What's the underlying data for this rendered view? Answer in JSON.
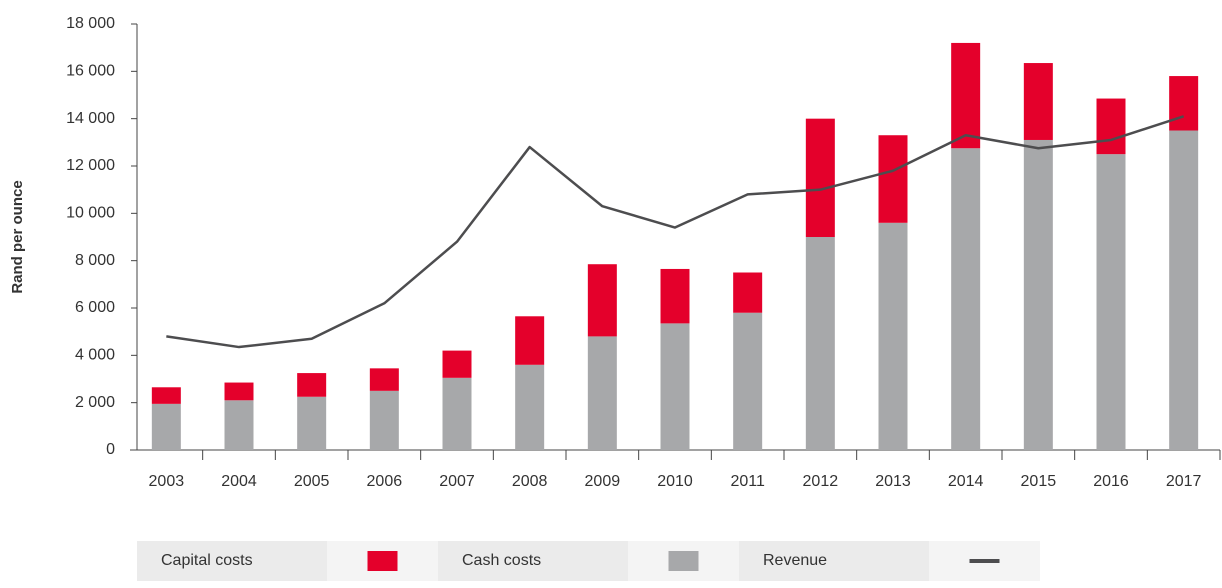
{
  "chart_data": {
    "type": "bar",
    "stacked": true,
    "ylabel": "Rand per ounce",
    "categories": [
      "2003",
      "2004",
      "2005",
      "2006",
      "2007",
      "2008",
      "2009",
      "2010",
      "2011",
      "2012",
      "2013",
      "2014",
      "2015",
      "2016",
      "2017"
    ],
    "series": [
      {
        "name": "Cash costs",
        "color": "#a7a8aa",
        "type": "bar",
        "values": [
          1950,
          2100,
          2250,
          2500,
          3050,
          3600,
          4800,
          5350,
          5800,
          9000,
          9600,
          12750,
          13100,
          12500,
          13500
        ]
      },
      {
        "name": "Capital costs",
        "color": "#e4002b",
        "type": "bar",
        "values": [
          700,
          750,
          1000,
          950,
          1150,
          2050,
          3050,
          2300,
          1700,
          5000,
          3700,
          4450,
          3250,
          2350,
          2300
        ]
      },
      {
        "name": "Revenue",
        "color": "#4d4d4f",
        "type": "line",
        "values": [
          4800,
          4350,
          4700,
          6200,
          8800,
          12800,
          10300,
          9400,
          10800,
          11000,
          11800,
          13300,
          12750,
          13100,
          14100
        ]
      }
    ],
    "legend_order": [
      1,
      0,
      2
    ],
    "legend": "bottom",
    "ylim": [
      0,
      18000
    ],
    "yticks": [
      0,
      {
        "value": 2000,
        "label": "2 000"
      },
      {
        "value": 4000,
        "label": "4 000"
      },
      {
        "value": 6000,
        "label": "6 000"
      },
      {
        "value": 8000,
        "label": "8 000"
      },
      {
        "value": 10000,
        "label": "10 000"
      },
      {
        "value": 12000,
        "label": "12 000"
      },
      {
        "value": 14000,
        "label": "14 000"
      },
      {
        "value": 16000,
        "label": "16 000"
      },
      {
        "value": 18000,
        "label": "18 000"
      }
    ],
    "grid": false
  }
}
